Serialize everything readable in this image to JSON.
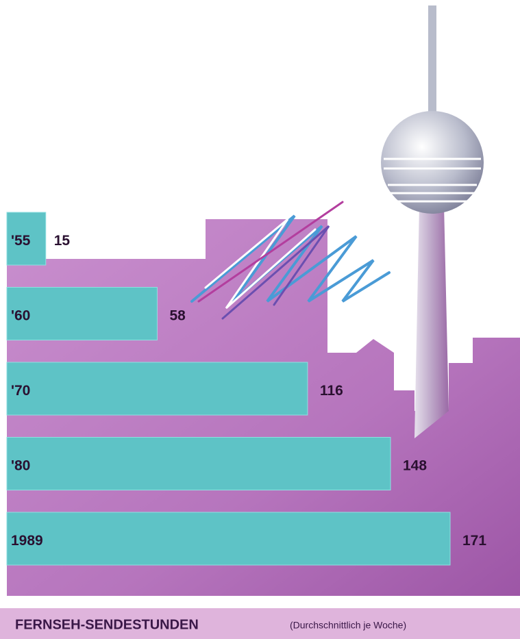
{
  "chart_data": {
    "type": "bar",
    "orientation": "horizontal",
    "title": "FERNSEH-SENDESTUNDEN",
    "subtitle": "(Durchschnittlich je Woche)",
    "categories": [
      "'55",
      "'60",
      "'70",
      "'80",
      "1989"
    ],
    "values": [
      15,
      58,
      116,
      148,
      171
    ],
    "color": "#5ec3c6"
  }
}
